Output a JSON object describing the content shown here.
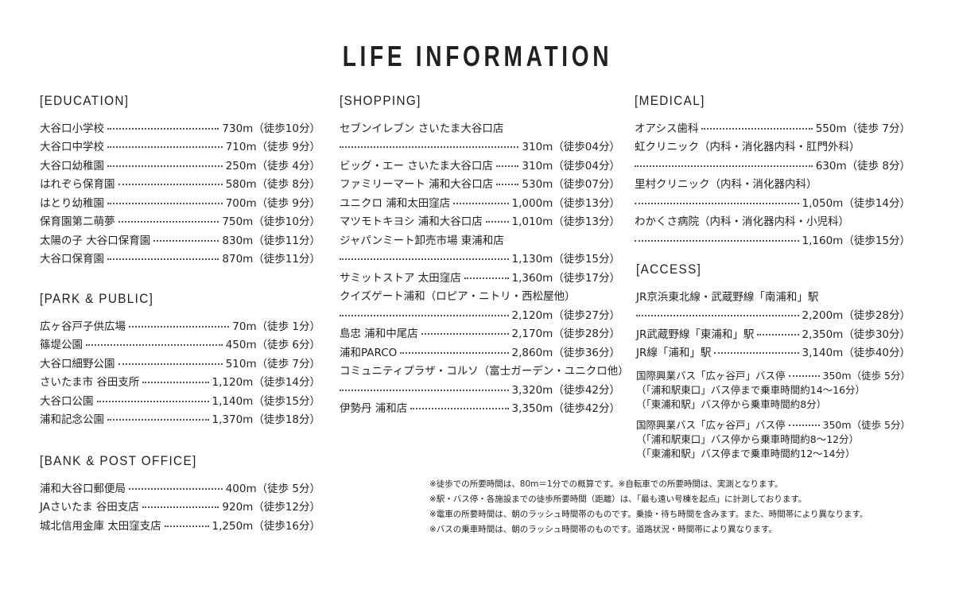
{
  "title": "LIFE INFORMATION",
  "sections": {
    "education": {
      "heading": "[EDUCATION]",
      "items": [
        {
          "name": "大谷口小学校",
          "value": "730m（徒歩10分）"
        },
        {
          "name": "大谷口中学校",
          "value": "710m（徒歩 9分）"
        },
        {
          "name": "大谷口幼稚園",
          "value": "250m（徒歩 4分）"
        },
        {
          "name": "はれぞら保育園",
          "value": "580m（徒歩 8分）"
        },
        {
          "name": "はとり幼稚園",
          "value": "700m（徒歩 9分）"
        },
        {
          "name": "保育園第二萌夢",
          "value": "750m（徒歩10分）"
        },
        {
          "name": "太陽の子 大谷口保育園",
          "value": "830m（徒歩11分）"
        },
        {
          "name": "大谷口保育園",
          "value": "870m（徒歩11分）"
        }
      ]
    },
    "park": {
      "heading": "[PARK & PUBLIC]",
      "items": [
        {
          "name": "広ヶ谷戸子供広場",
          "value": "70m（徒歩 1分）"
        },
        {
          "name": "篠堤公園",
          "value": "450m（徒歩 6分）"
        },
        {
          "name": "大谷口細野公園",
          "value": "510m（徒歩 7分）"
        },
        {
          "name": "さいたま市 谷田支所",
          "value": "1,120m（徒歩14分）"
        },
        {
          "name": "大谷口公園",
          "value": "1,140m（徒歩15分）"
        },
        {
          "name": "浦和記念公園",
          "value": "1,370m（徒歩18分）"
        }
      ]
    },
    "bank": {
      "heading": "[BANK & POST OFFICE]",
      "items": [
        {
          "name": "浦和大谷口郵便局",
          "value": "400m（徒歩 5分）"
        },
        {
          "name": "JAさいたま 谷田支店",
          "value": "920m（徒歩12分）"
        },
        {
          "name": "城北信用金庫 太田窪支店",
          "value": "1,250m（徒歩16分）"
        }
      ]
    },
    "shopping": {
      "heading": "[SHOPPING]",
      "items": [
        {
          "name": "セブンイレブン さいたま大谷口店"
        },
        {
          "value": "310m（徒歩04分）"
        },
        {
          "name": "ビッグ・エー さいたま大谷口店",
          "value": "310m（徒歩04分）"
        },
        {
          "name": "ファミリーマート 浦和大谷口店",
          "value": "530m（徒歩07分）"
        },
        {
          "name": "ユニクロ 浦和太田窪店",
          "value": "1,000m（徒歩13分）"
        },
        {
          "name": "マツモトキヨシ 浦和大谷口店",
          "value": "1,010m（徒歩13分）"
        },
        {
          "name": "ジャパンミート卸売市場 東浦和店"
        },
        {
          "value": "1,130m（徒歩15分）"
        },
        {
          "name": "サミットストア 太田窪店",
          "value": "1,360m（徒歩17分）"
        },
        {
          "name": "クイズゲート浦和（ロピア・ニトリ・西松屋他）"
        },
        {
          "value": "2,120m（徒歩27分）"
        },
        {
          "name": "島忠 浦和中尾店",
          "value": "2,170m（徒歩28分）"
        },
        {
          "name": "浦和PARCO",
          "value": "2,860m（徒歩36分）"
        },
        {
          "name": "コミュニティプラザ・コルソ（富士ガーデン・ユニクロ他）"
        },
        {
          "value": "3,320m（徒歩42分）"
        },
        {
          "name": "伊勢丹 浦和店",
          "value": "3,350m（徒歩42分）"
        }
      ]
    },
    "medical": {
      "heading": "[MEDICAL]",
      "items": [
        {
          "name": "オアシス歯科",
          "value": "550m（徒歩 7分）"
        },
        {
          "name": "虹クリニック（内科・消化器内科・肛門外科）"
        },
        {
          "value": "630m（徒歩 8分）"
        },
        {
          "name": "里村クリニック（内科・消化器内科）"
        },
        {
          "value": "1,050m（徒歩14分）"
        },
        {
          "name": "わかくさ病院（内科・消化器内科・小児科）"
        },
        {
          "value": "1,160m（徒歩15分）"
        }
      ]
    },
    "access": {
      "heading": "[ACCESS]",
      "trains": [
        {
          "name": "JR京浜東北線・武蔵野線「南浦和」駅"
        },
        {
          "value": "2,200m（徒歩28分）"
        },
        {
          "name": "JR武蔵野線「東浦和」駅",
          "value": "2,350m（徒歩30分）"
        },
        {
          "name": "JR線「浦和」駅",
          "value": "3,140m（徒歩40分）"
        }
      ],
      "bus1": [
        {
          "name": "国際興業バス「広ヶ谷戸」バス停",
          "value": "350m（徒歩 5分）"
        },
        {
          "name": "（「浦和駅東口」バス停まで乗車時間約14〜16分）"
        },
        {
          "name": "（「東浦和駅」バス停から乗車時間約8分）"
        }
      ],
      "bus2": [
        {
          "name": "国際興業バス「広ヶ谷戸」バス停",
          "value": "350m（徒歩 5分）"
        },
        {
          "name": "（「浦和駅東口」バス停から乗車時間約8〜12分）"
        },
        {
          "name": "（「東浦和駅」バス停まで乗車時間約12〜14分）"
        }
      ]
    }
  },
  "notes": [
    "※徒歩での所要時間は、80m＝1分での概算です。※自転車での所要時間は、実測となります。",
    "※駅・バス停・各施設までの徒歩所要時間（距離）は、「最も遠い号棟を起点」に計測しております。",
    "※電車の所要時間は、朝のラッシュ時間帯のものです。乗換・待ち時間を含みます。また、時間帯により異なります。",
    "※バスの乗車時間は、朝のラッシュ時間帯のものです。道路状況・時間帯により異なります。"
  ]
}
